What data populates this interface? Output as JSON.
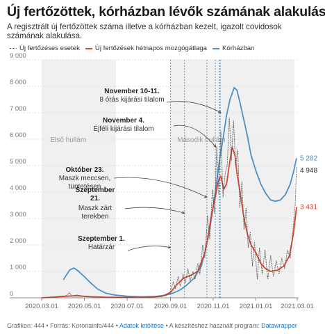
{
  "title": "Új fertőzöttek, kórházban lévők számának alakulása",
  "subtitle": "A regisztrált új fertőzöttek száma illetve a kórházban kezelt, igazolt covidosok számának alakulása.",
  "legend": {
    "daily": "Új fertőzéses esetek",
    "avg": "Új fertőzések hétnapos mozgógátlaga",
    "hosp": "Kórházban"
  },
  "footer": {
    "prefix": "Grafikon: 444 • Forrás: Koronainfo/444 • ",
    "download": "Adatok letöltése",
    "middle": " • A készítéshez használt program: ",
    "tool": "Datawrapper"
  },
  "chart_data": {
    "type": "line",
    "x_start": "2020-03-01",
    "x_end": "2021-03-01",
    "ylim": [
      0,
      9000
    ],
    "y_ticks": [
      "9 000",
      "8 000",
      "7 000",
      "6 000",
      "5 000",
      "4 000",
      "3 000",
      "2 000",
      "1 000",
      "0"
    ],
    "x_ticks": [
      "2020.03.01",
      "2020.05.01",
      "2020.07.01",
      "2020.09.01",
      "2020.11.01",
      "2021.01.01",
      "2021.03.01"
    ],
    "colors": {
      "daily": "#555555",
      "avg": "#d6452f",
      "hosp": "#4c8fc6",
      "band": "#f0f0f0",
      "vline": "#4c8fc6"
    },
    "shaded_periods": [
      {
        "label": "Első hullám",
        "start": "2020-03-01",
        "end": "2020-06-15"
      },
      {
        "label": "Második hullám",
        "start": "2020-09-01",
        "end": "2021-02-25"
      }
    ],
    "events": [
      {
        "date": "2020-09-01",
        "title": "Szeptember 1.",
        "text": "Határzár"
      },
      {
        "date": "2020-09-21",
        "title": "Szeptember 21.",
        "text": "Maszk zárt terekben"
      },
      {
        "date": "2020-10-23",
        "title": "Október 23.",
        "text": "Maszk meccsen, tüntetésen"
      },
      {
        "date": "2020-11-04",
        "title": "November 4.",
        "text": "Éjféli kijárási tilalom"
      },
      {
        "date": "2020-11-10",
        "title": "November 10-11.",
        "text": "8 órás kijárási tilalom"
      },
      {
        "date": "2020-11-11",
        "title": "",
        "text": ""
      }
    ],
    "end_labels": {
      "hosp": "5 282",
      "daily": "4 948",
      "avg": "3 431"
    },
    "series": [
      {
        "name": "Kórházban",
        "key": "hosp",
        "points": [
          [
            "2020-04-01",
            680
          ],
          [
            "2020-04-05",
            850
          ],
          [
            "2020-04-10",
            1050
          ],
          [
            "2020-04-16",
            1130
          ],
          [
            "2020-04-22",
            1020
          ],
          [
            "2020-05-01",
            800
          ],
          [
            "2020-05-10",
            560
          ],
          [
            "2020-05-20",
            330
          ],
          [
            "2020-06-01",
            170
          ],
          [
            "2020-06-15",
            100
          ],
          [
            "2020-07-01",
            60
          ],
          [
            "2020-07-20",
            40
          ],
          [
            "2020-08-10",
            50
          ],
          [
            "2020-08-25",
            100
          ],
          [
            "2020-09-05",
            180
          ],
          [
            "2020-09-15",
            300
          ],
          [
            "2020-09-25",
            500
          ],
          [
            "2020-10-05",
            750
          ],
          [
            "2020-10-15",
            1200
          ],
          [
            "2020-10-20",
            1700
          ],
          [
            "2020-10-25",
            2300
          ],
          [
            "2020-10-30",
            3100
          ],
          [
            "2020-11-04",
            4000
          ],
          [
            "2020-11-10",
            5200
          ],
          [
            "2020-11-15",
            6000
          ],
          [
            "2020-11-20",
            6900
          ],
          [
            "2020-11-25",
            7500
          ],
          [
            "2020-12-01",
            7950
          ],
          [
            "2020-12-05",
            7850
          ],
          [
            "2020-12-10",
            7300
          ],
          [
            "2020-12-15",
            6700
          ],
          [
            "2020-12-20",
            6100
          ],
          [
            "2020-12-25",
            5400
          ],
          [
            "2021-01-01",
            4800
          ],
          [
            "2021-01-08",
            4300
          ],
          [
            "2021-01-15",
            3950
          ],
          [
            "2021-01-22",
            3700
          ],
          [
            "2021-01-29",
            3650
          ],
          [
            "2021-02-05",
            3700
          ],
          [
            "2021-02-12",
            3900
          ],
          [
            "2021-02-19",
            4300
          ],
          [
            "2021-02-24",
            4800
          ],
          [
            "2021-02-28",
            5282
          ]
        ]
      },
      {
        "name": "Új fertőzések hétnapos mozgógátlaga",
        "key": "avg",
        "points": [
          [
            "2020-03-01",
            0
          ],
          [
            "2020-03-20",
            30
          ],
          [
            "2020-04-05",
            60
          ],
          [
            "2020-04-20",
            80
          ],
          [
            "2020-05-10",
            40
          ],
          [
            "2020-06-01",
            20
          ],
          [
            "2020-07-01",
            15
          ],
          [
            "2020-08-01",
            20
          ],
          [
            "2020-08-20",
            60
          ],
          [
            "2020-09-01",
            200
          ],
          [
            "2020-09-10",
            500
          ],
          [
            "2020-09-20",
            750
          ],
          [
            "2020-09-30",
            850
          ],
          [
            "2020-10-10",
            1000
          ],
          [
            "2020-10-20",
            1700
          ],
          [
            "2020-10-25",
            2400
          ],
          [
            "2020-10-30",
            3200
          ],
          [
            "2020-11-04",
            3800
          ],
          [
            "2020-11-08",
            4400
          ],
          [
            "2020-11-12",
            4600
          ],
          [
            "2020-11-16",
            4100
          ],
          [
            "2020-11-20",
            4300
          ],
          [
            "2020-11-25",
            5200
          ],
          [
            "2020-11-28",
            5700
          ],
          [
            "2020-12-02",
            5400
          ],
          [
            "2020-12-05",
            4700
          ],
          [
            "2020-12-10",
            3900
          ],
          [
            "2020-12-15",
            3000
          ],
          [
            "2020-12-20",
            2400
          ],
          [
            "2020-12-25",
            2000
          ],
          [
            "2021-01-01",
            1700
          ],
          [
            "2021-01-08",
            1300
          ],
          [
            "2021-01-15",
            1100
          ],
          [
            "2021-01-22",
            1000
          ],
          [
            "2021-02-01",
            1050
          ],
          [
            "2021-02-10",
            1200
          ],
          [
            "2021-02-18",
            1600
          ],
          [
            "2021-02-24",
            2500
          ],
          [
            "2021-02-28",
            3431
          ]
        ]
      },
      {
        "name": "Új fertőzéses esetek",
        "key": "daily",
        "points": [
          [
            "2020-03-01",
            0
          ],
          [
            "2020-03-20",
            40
          ],
          [
            "2020-04-05",
            80
          ],
          [
            "2020-04-10",
            200
          ],
          [
            "2020-04-13",
            60
          ],
          [
            "2020-04-20",
            110
          ],
          [
            "2020-05-01",
            50
          ],
          [
            "2020-06-01",
            20
          ],
          [
            "2020-07-01",
            15
          ],
          [
            "2020-08-10",
            30
          ],
          [
            "2020-08-25",
            80
          ],
          [
            "2020-09-01",
            250
          ],
          [
            "2020-09-05",
            600
          ],
          [
            "2020-09-08",
            350
          ],
          [
            "2020-09-12",
            800
          ],
          [
            "2020-09-15",
            450
          ],
          [
            "2020-09-19",
            900
          ],
          [
            "2020-09-22",
            550
          ],
          [
            "2020-09-26",
            1100
          ],
          [
            "2020-09-29",
            650
          ],
          [
            "2020-10-03",
            1000
          ],
          [
            "2020-10-06",
            700
          ],
          [
            "2020-10-10",
            1300
          ],
          [
            "2020-10-13",
            900
          ],
          [
            "2020-10-17",
            2000
          ],
          [
            "2020-10-20",
            1500
          ],
          [
            "2020-10-24",
            3100
          ],
          [
            "2020-10-27",
            2200
          ],
          [
            "2020-10-31",
            4100
          ],
          [
            "2020-11-03",
            3200
          ],
          [
            "2020-11-06",
            5700
          ],
          [
            "2020-11-09",
            3900
          ],
          [
            "2020-11-12",
            6300
          ],
          [
            "2020-11-15",
            3800
          ],
          [
            "2020-11-18",
            4700
          ],
          [
            "2020-11-21",
            5000
          ],
          [
            "2020-11-24",
            6800
          ],
          [
            "2020-11-27",
            5200
          ],
          [
            "2020-11-30",
            6700
          ],
          [
            "2020-12-03",
            5000
          ],
          [
            "2020-12-06",
            5600
          ],
          [
            "2020-12-09",
            3400
          ],
          [
            "2020-12-12",
            4400
          ],
          [
            "2020-12-15",
            2600
          ],
          [
            "2020-12-18",
            3400
          ],
          [
            "2020-12-21",
            1900
          ],
          [
            "2020-12-24",
            2500
          ],
          [
            "2020-12-27",
            1200
          ],
          [
            "2020-12-30",
            2100
          ],
          [
            "2021-01-03",
            700
          ],
          [
            "2021-01-06",
            1900
          ],
          [
            "2021-01-10",
            900
          ],
          [
            "2021-01-14",
            1800
          ],
          [
            "2021-01-18",
            700
          ],
          [
            "2021-01-22",
            1600
          ],
          [
            "2021-01-26",
            800
          ],
          [
            "2021-01-30",
            1400
          ],
          [
            "2021-02-03",
            900
          ],
          [
            "2021-02-07",
            1500
          ],
          [
            "2021-02-11",
            1100
          ],
          [
            "2021-02-15",
            1800
          ],
          [
            "2021-02-19",
            1500
          ],
          [
            "2021-02-23",
            2600
          ],
          [
            "2021-02-26",
            3500
          ],
          [
            "2021-02-28",
            4948
          ]
        ]
      }
    ]
  }
}
